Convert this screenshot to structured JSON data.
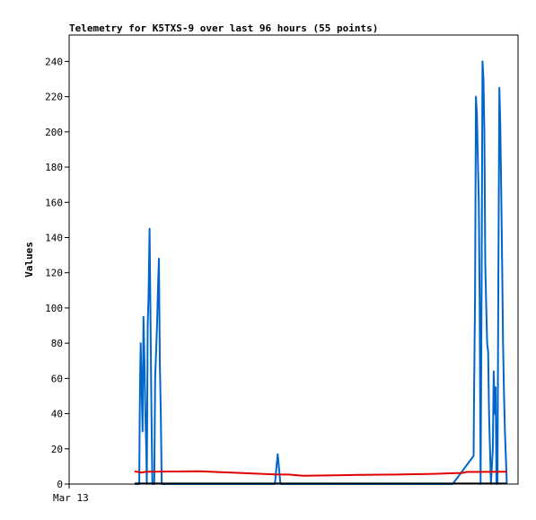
{
  "chart_data": {
    "type": "line",
    "title": "Telemetry for K5TXS-9 over last 96 hours (55 points)",
    "xlabel": "",
    "ylabel": "Values",
    "x_tick_labels": [
      "Mar 13"
    ],
    "xlim": [
      0,
      96
    ],
    "ylim": [
      0,
      255
    ],
    "y_ticks": [
      0,
      20,
      40,
      60,
      80,
      100,
      120,
      140,
      160,
      180,
      200,
      220,
      240
    ],
    "grid": false,
    "legend": "none",
    "series": [
      {
        "color": "#0066cc",
        "points": [
          [
            14.0,
            0
          ],
          [
            15.0,
            0
          ],
          [
            15.1,
            40
          ],
          [
            15.2,
            65
          ],
          [
            15.3,
            80
          ],
          [
            15.5,
            55
          ],
          [
            15.7,
            30
          ],
          [
            15.9,
            95
          ],
          [
            16.1,
            70
          ],
          [
            16.3,
            40
          ],
          [
            16.5,
            20
          ],
          [
            16.6,
            0
          ],
          [
            16.8,
            90
          ],
          [
            17.0,
            108
          ],
          [
            17.2,
            145
          ],
          [
            17.4,
            95
          ],
          [
            17.6,
            40
          ],
          [
            17.8,
            0
          ],
          [
            18.2,
            0
          ],
          [
            18.4,
            60
          ],
          [
            18.8,
            90
          ],
          [
            19.0,
            112
          ],
          [
            19.2,
            128
          ],
          [
            19.4,
            70
          ],
          [
            19.6,
            40
          ],
          [
            19.8,
            0
          ],
          [
            44.0,
            0
          ],
          [
            44.6,
            17
          ],
          [
            45.2,
            0
          ],
          [
            82.0,
            0
          ],
          [
            86.5,
            16
          ],
          [
            86.6,
            50
          ],
          [
            86.8,
            105
          ],
          [
            87.0,
            220
          ],
          [
            87.2,
            210
          ],
          [
            87.4,
            185
          ],
          [
            87.6,
            160
          ],
          [
            87.8,
            100
          ],
          [
            88.0,
            0
          ],
          [
            88.2,
            110
          ],
          [
            88.4,
            240
          ],
          [
            88.6,
            230
          ],
          [
            88.8,
            200
          ],
          [
            89.0,
            125
          ],
          [
            89.2,
            100
          ],
          [
            89.4,
            80
          ],
          [
            89.6,
            75
          ],
          [
            89.8,
            40
          ],
          [
            90.2,
            0
          ],
          [
            90.6,
            20
          ],
          [
            90.8,
            64
          ],
          [
            91.0,
            40
          ],
          [
            91.2,
            55
          ],
          [
            91.4,
            0
          ],
          [
            91.6,
            0
          ],
          [
            91.8,
            120
          ],
          [
            92.0,
            225
          ],
          [
            92.2,
            205
          ],
          [
            92.4,
            165
          ],
          [
            92.6,
            125
          ],
          [
            92.8,
            80
          ],
          [
            93.0,
            50
          ],
          [
            93.2,
            30
          ],
          [
            93.6,
            0
          ]
        ]
      },
      {
        "color": "#e00000",
        "points": [
          [
            14.0,
            7.2
          ],
          [
            15.5,
            6.6
          ],
          [
            16.5,
            7.0
          ],
          [
            28.0,
            7.3
          ],
          [
            36.0,
            6.4
          ],
          [
            44.0,
            5.5
          ],
          [
            47.0,
            5.4
          ],
          [
            50.0,
            4.7
          ],
          [
            55.0,
            4.9
          ],
          [
            62.0,
            5.2
          ],
          [
            70.0,
            5.4
          ],
          [
            78.0,
            5.8
          ],
          [
            84.0,
            6.3
          ],
          [
            85.0,
            6.9
          ],
          [
            93.6,
            7.0
          ]
        ]
      },
      {
        "color": "#000000",
        "points": [
          [
            14.0,
            0.3
          ],
          [
            93.6,
            0.3
          ]
        ]
      }
    ]
  }
}
